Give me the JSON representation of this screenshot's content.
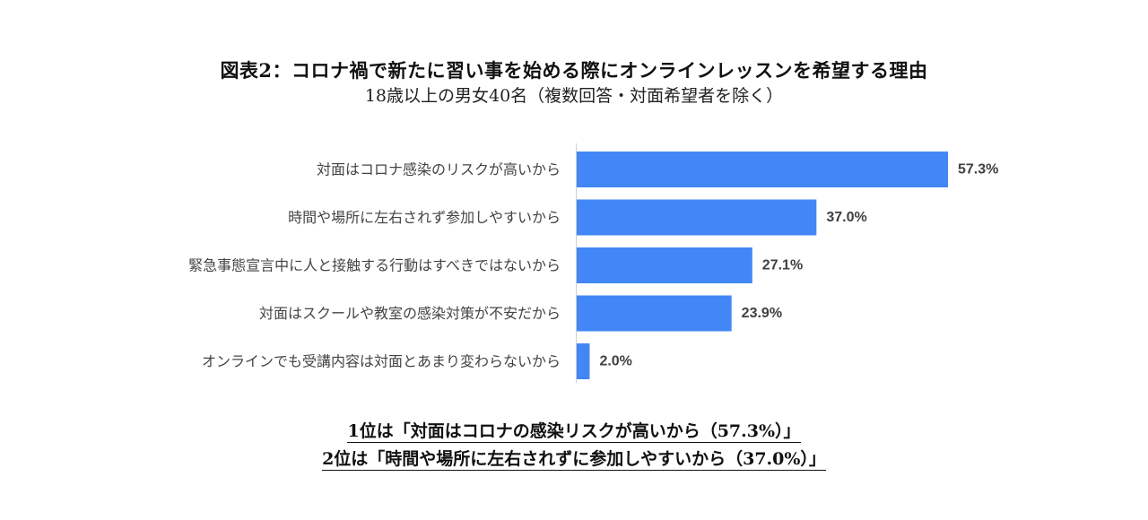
{
  "title": "図表2：コロナ禍で新たに習い事を始める際にオンラインレッスンを希望する理由",
  "subtitle": "18歳以上の男女40名（複数回答・対面希望者を除く）",
  "chart_data": {
    "type": "bar",
    "orientation": "horizontal",
    "categories": [
      "対面はコロナ感染のリスクが高いから",
      "時間や場所に左右されず参加しやすいから",
      "緊急事態宣言中に人と接触する行動はすべきではないから",
      "対面はスクールや教室の感染対策が不安だから",
      "オンラインでも受講内容は対面とあまり変わらないから"
    ],
    "values": [
      57.3,
      37.0,
      27.1,
      23.9,
      2.0
    ],
    "value_labels": [
      "57.3%",
      "37.0%",
      "27.1%",
      "23.9%",
      "2.0%"
    ],
    "unit": "%",
    "bar_color": "#4287f5",
    "axis_color": "#d0d0d0",
    "xlim": [
      0,
      57.3
    ],
    "grid": false,
    "legend": "none"
  },
  "summary": {
    "line1": "1位は「対面はコロナの感染リスクが高いから（57.3%）」",
    "line2": "2位は「時間や場所に左右されずに参加しやすいから（37.0%）」"
  }
}
